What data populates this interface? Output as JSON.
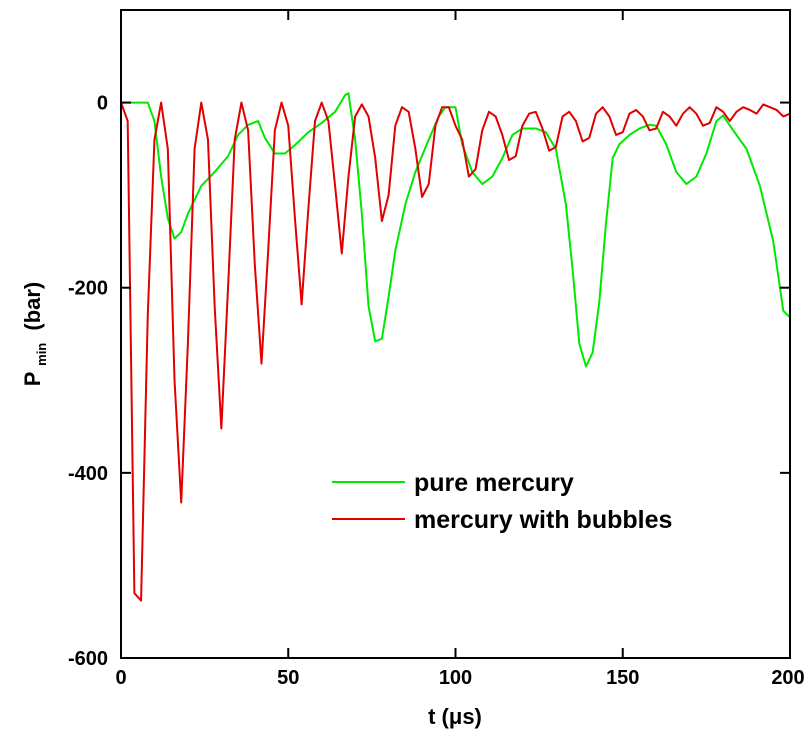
{
  "chart_data": {
    "type": "line",
    "title": "",
    "xlabel": "t (μs)",
    "ylabel": "P",
    "ylabel_subscript": "min",
    "ylabel_unit": "(bar)",
    "xlim": [
      0,
      200
    ],
    "ylim": [
      -600,
      100
    ],
    "xticks": [
      0,
      50,
      100,
      150,
      200
    ],
    "yticks": [
      -600,
      -400,
      -200,
      0
    ],
    "grid": false,
    "legend_position": "lower-right",
    "series": [
      {
        "name": "pure mercury",
        "color": "#00e800",
        "points": [
          [
            0,
            0
          ],
          [
            3,
            0
          ],
          [
            6,
            0
          ],
          [
            8,
            0
          ],
          [
            10,
            -20
          ],
          [
            12,
            -80
          ],
          [
            14,
            -125
          ],
          [
            16,
            -147
          ],
          [
            18,
            -140
          ],
          [
            20,
            -120
          ],
          [
            24,
            -90
          ],
          [
            28,
            -75
          ],
          [
            32,
            -58
          ],
          [
            35,
            -35
          ],
          [
            38,
            -24
          ],
          [
            41,
            -20
          ],
          [
            43,
            -38
          ],
          [
            46,
            -55
          ],
          [
            49,
            -55
          ],
          [
            52,
            -46
          ],
          [
            56,
            -32
          ],
          [
            60,
            -22
          ],
          [
            64,
            -10
          ],
          [
            67,
            8
          ],
          [
            68,
            10
          ],
          [
            70,
            -40
          ],
          [
            72,
            -120
          ],
          [
            74,
            -220
          ],
          [
            76,
            -258
          ],
          [
            78,
            -255
          ],
          [
            80,
            -210
          ],
          [
            82,
            -160
          ],
          [
            85,
            -110
          ],
          [
            88,
            -75
          ],
          [
            92,
            -40
          ],
          [
            95,
            -15
          ],
          [
            97,
            -5
          ],
          [
            100,
            -5
          ],
          [
            102,
            -45
          ],
          [
            105,
            -75
          ],
          [
            108,
            -88
          ],
          [
            111,
            -80
          ],
          [
            114,
            -60
          ],
          [
            117,
            -35
          ],
          [
            120,
            -28
          ],
          [
            124,
            -28
          ],
          [
            127,
            -32
          ],
          [
            130,
            -50
          ],
          [
            133,
            -110
          ],
          [
            135,
            -180
          ],
          [
            137,
            -260
          ],
          [
            139,
            -285
          ],
          [
            141,
            -270
          ],
          [
            143,
            -215
          ],
          [
            145,
            -130
          ],
          [
            147,
            -60
          ],
          [
            149,
            -45
          ],
          [
            152,
            -35
          ],
          [
            155,
            -28
          ],
          [
            158,
            -24
          ],
          [
            160,
            -25
          ],
          [
            163,
            -45
          ],
          [
            166,
            -75
          ],
          [
            169,
            -88
          ],
          [
            172,
            -80
          ],
          [
            175,
            -55
          ],
          [
            178,
            -20
          ],
          [
            180,
            -14
          ],
          [
            183,
            -30
          ],
          [
            187,
            -50
          ],
          [
            191,
            -90
          ],
          [
            195,
            -150
          ],
          [
            198,
            -225
          ],
          [
            200,
            -232
          ]
        ]
      },
      {
        "name": "mercury with bubbles",
        "color": "#e00000",
        "points": [
          [
            0,
            0
          ],
          [
            2,
            -20
          ],
          [
            4,
            -530
          ],
          [
            6,
            -538
          ],
          [
            8,
            -230
          ],
          [
            10,
            -40
          ],
          [
            12,
            0
          ],
          [
            14,
            -50
          ],
          [
            16,
            -300
          ],
          [
            18,
            -432
          ],
          [
            20,
            -260
          ],
          [
            22,
            -50
          ],
          [
            24,
            0
          ],
          [
            26,
            -40
          ],
          [
            28,
            -220
          ],
          [
            30,
            -352
          ],
          [
            32,
            -200
          ],
          [
            34,
            -40
          ],
          [
            36,
            0
          ],
          [
            38,
            -30
          ],
          [
            40,
            -175
          ],
          [
            42,
            -282
          ],
          [
            44,
            -160
          ],
          [
            46,
            -30
          ],
          [
            48,
            0
          ],
          [
            50,
            -25
          ],
          [
            52,
            -125
          ],
          [
            54,
            -218
          ],
          [
            56,
            -115
          ],
          [
            58,
            -20
          ],
          [
            60,
            0
          ],
          [
            62,
            -20
          ],
          [
            64,
            -90
          ],
          [
            66,
            -163
          ],
          [
            68,
            -80
          ],
          [
            70,
            -15
          ],
          [
            72,
            -2
          ],
          [
            74,
            -15
          ],
          [
            76,
            -60
          ],
          [
            78,
            -128
          ],
          [
            80,
            -100
          ],
          [
            82,
            -25
          ],
          [
            84,
            -5
          ],
          [
            86,
            -10
          ],
          [
            88,
            -50
          ],
          [
            90,
            -102
          ],
          [
            92,
            -88
          ],
          [
            94,
            -25
          ],
          [
            96,
            -5
          ],
          [
            98,
            -5
          ],
          [
            100,
            -25
          ],
          [
            102,
            -40
          ],
          [
            104,
            -80
          ],
          [
            106,
            -72
          ],
          [
            108,
            -30
          ],
          [
            110,
            -10
          ],
          [
            112,
            -15
          ],
          [
            114,
            -35
          ],
          [
            116,
            -62
          ],
          [
            118,
            -58
          ],
          [
            120,
            -25
          ],
          [
            122,
            -12
          ],
          [
            124,
            -10
          ],
          [
            126,
            -28
          ],
          [
            128,
            -52
          ],
          [
            130,
            -48
          ],
          [
            132,
            -15
          ],
          [
            134,
            -10
          ],
          [
            136,
            -20
          ],
          [
            138,
            -42
          ],
          [
            140,
            -38
          ],
          [
            142,
            -12
          ],
          [
            144,
            -5
          ],
          [
            146,
            -15
          ],
          [
            148,
            -35
          ],
          [
            150,
            -32
          ],
          [
            152,
            -12
          ],
          [
            154,
            -8
          ],
          [
            156,
            -15
          ],
          [
            158,
            -30
          ],
          [
            160,
            -28
          ],
          [
            162,
            -10
          ],
          [
            164,
            -15
          ],
          [
            166,
            -25
          ],
          [
            168,
            -12
          ],
          [
            170,
            -5
          ],
          [
            172,
            -12
          ],
          [
            174,
            -25
          ],
          [
            176,
            -22
          ],
          [
            178,
            -5
          ],
          [
            180,
            -10
          ],
          [
            182,
            -20
          ],
          [
            184,
            -10
          ],
          [
            186,
            -5
          ],
          [
            188,
            -8
          ],
          [
            190,
            -12
          ],
          [
            192,
            -2
          ],
          [
            194,
            -5
          ],
          [
            196,
            -8
          ],
          [
            198,
            -15
          ],
          [
            200,
            -12
          ]
        ]
      }
    ]
  }
}
